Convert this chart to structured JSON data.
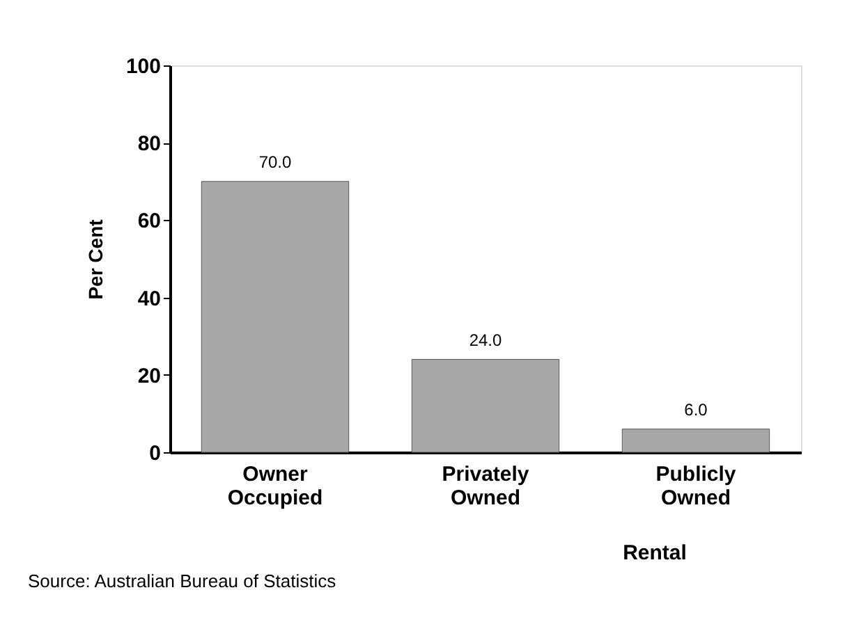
{
  "chart_data": {
    "type": "bar",
    "categories": [
      "Owner Occupied",
      "Privately Owned",
      "Publicly Owned"
    ],
    "values": [
      70.0,
      24.0,
      6.0
    ],
    "color": "#a8a8a8",
    "ylabel": "Per Cent",
    "ylim": [
      0,
      100
    ],
    "yticks": [
      0,
      20,
      40,
      60,
      80,
      100
    ],
    "value_labels": [
      "70.0",
      "24.0",
      "6.0"
    ],
    "grid": false,
    "annotations": [
      "Rental",
      "Source:  Australian Bureau of Statistics"
    ]
  }
}
